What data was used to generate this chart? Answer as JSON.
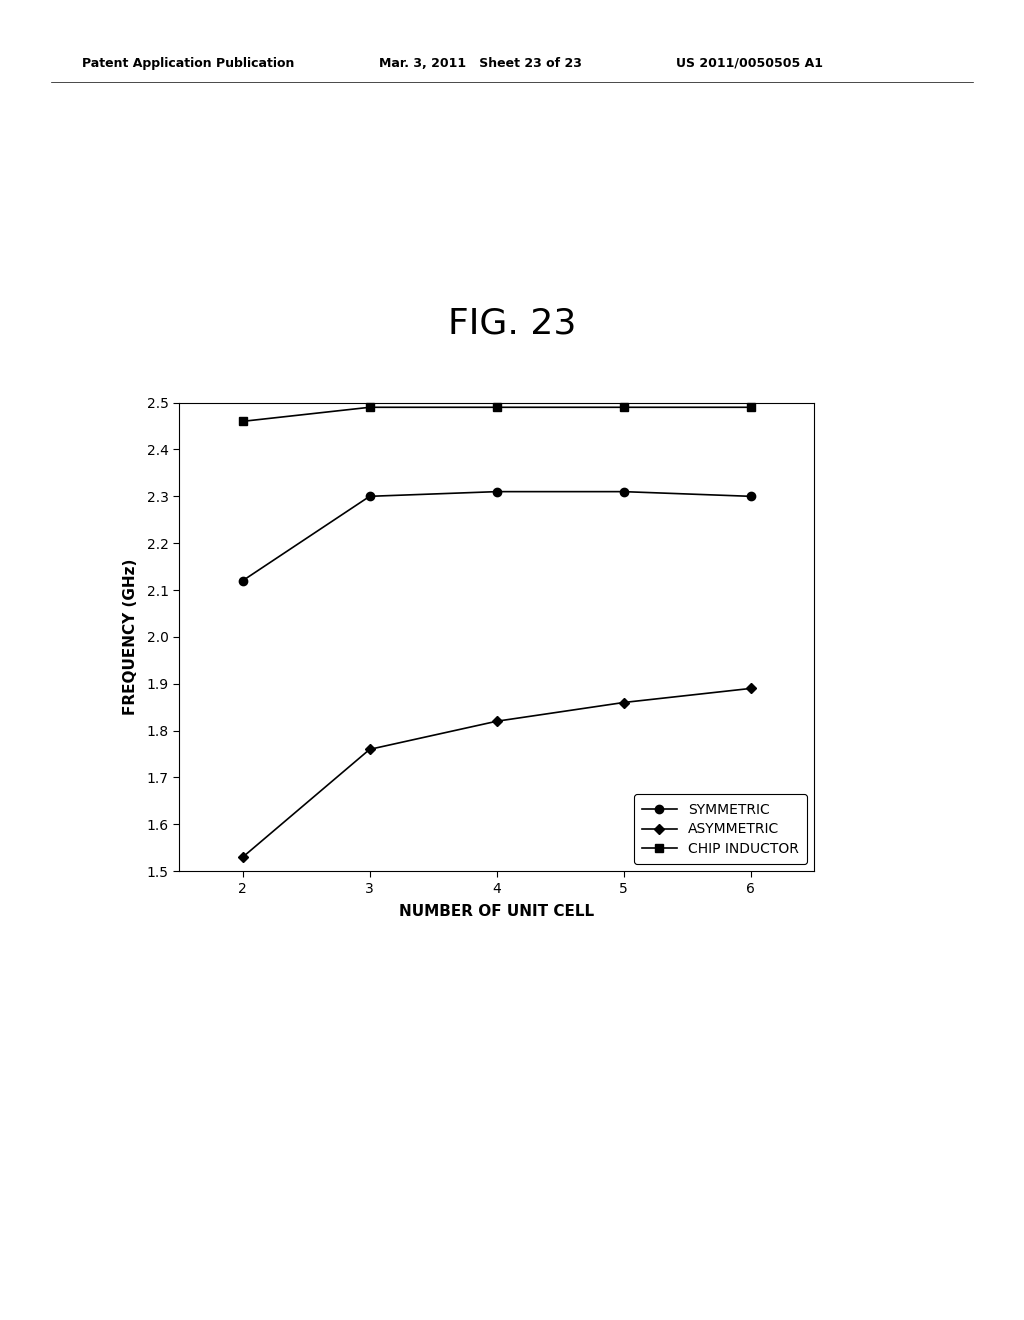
{
  "title": "FIG. 23",
  "xlabel": "NUMBER OF UNIT CELL",
  "ylabel": "FREQUENCY (GHz)",
  "xlim": [
    1.5,
    6.5
  ],
  "ylim": [
    1.5,
    2.5
  ],
  "xticks": [
    2,
    3,
    4,
    5,
    6
  ],
  "yticks": [
    1.5,
    1.6,
    1.7,
    1.8,
    1.9,
    2.0,
    2.1,
    2.2,
    2.3,
    2.4,
    2.5
  ],
  "x": [
    2,
    3,
    4,
    5,
    6
  ],
  "symmetric": [
    2.12,
    2.3,
    2.31,
    2.31,
    2.3
  ],
  "asymmetric": [
    1.53,
    1.76,
    1.82,
    1.86,
    1.89
  ],
  "chip_inductor": [
    2.46,
    2.49,
    2.49,
    2.49,
    2.49
  ],
  "header_left": "Patent Application Publication",
  "header_mid": "Mar. 3, 2011   Sheet 23 of 23",
  "header_right": "US 2011/0050505 A1",
  "line_color": "#000000",
  "bg_color": "#ffffff",
  "marker_circle": "o",
  "marker_diamond": "D",
  "marker_square": "s",
  "title_fontsize": 26,
  "header_fontsize": 9,
  "axis_label_fontsize": 11,
  "tick_fontsize": 10,
  "legend_fontsize": 10,
  "marker_size": 6,
  "linewidth": 1.2
}
